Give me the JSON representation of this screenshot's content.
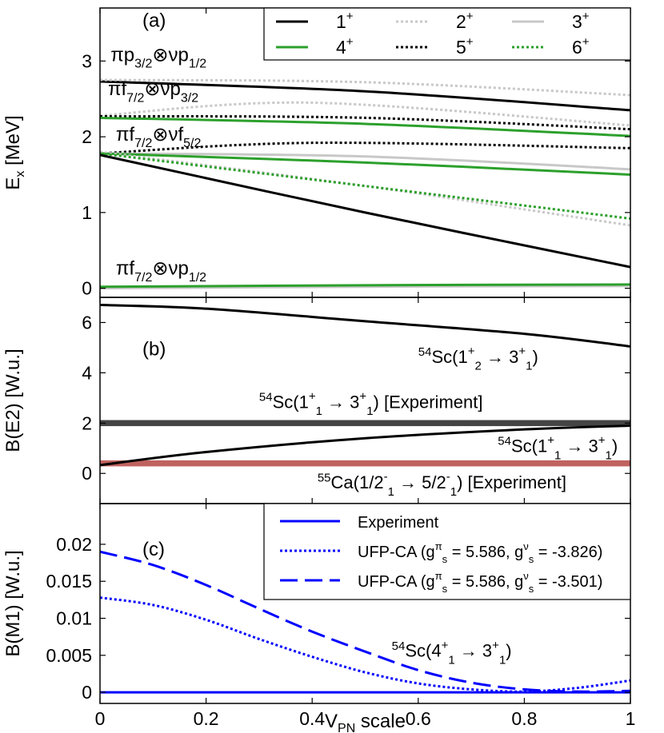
{
  "chart_data": [
    {
      "type": "line",
      "panel": "(a)",
      "ylabel": "E",
      "ylabel_sub": "x",
      "ylabel_unit": "[MeV]",
      "ylim": [
        -0.12,
        3.7
      ],
      "xlim": [
        0,
        1
      ],
      "yticks": [
        "0",
        "1",
        "2",
        "3"
      ],
      "ytick_values": [
        0,
        1,
        2,
        3
      ],
      "legend_position": "top-right",
      "legend": [
        {
          "label": "1",
          "sup": "+",
          "color": "#000000",
          "style": "solid"
        },
        {
          "label": "2",
          "sup": "+",
          "color": "#c8c8c8",
          "style": "dotted"
        },
        {
          "label": "3",
          "sup": "+",
          "color": "#c8c8c8",
          "style": "solid"
        },
        {
          "label": "4",
          "sup": "+",
          "color": "#2ca02c",
          "style": "solid"
        },
        {
          "label": "5",
          "sup": "+",
          "color": "#000000",
          "style": "dotted"
        },
        {
          "label": "6",
          "sup": "+",
          "color": "#2ca02c",
          "style": "dotted"
        }
      ],
      "annotations": [
        {
          "parts": [
            "πp",
            "3/2",
            "⊗νp",
            "1/2"
          ],
          "x": 0.02,
          "y": 3.0
        },
        {
          "parts": [
            "πf",
            "7/2",
            "⊗νp",
            "3/2"
          ],
          "x": 0.015,
          "y": 2.55
        },
        {
          "parts": [
            "πf",
            "7/2",
            "⊗νf",
            "5/2"
          ],
          "x": 0.03,
          "y": 1.95
        },
        {
          "parts": [
            "πf",
            "7/2",
            "⊗νp",
            "1/2"
          ],
          "x": 0.03,
          "y": 0.18
        }
      ],
      "series": [
        {
          "name": "1+ (p3/2 x p1/2)",
          "color": "#000000",
          "style": "solid",
          "x": [
            0,
            0.5,
            1
          ],
          "y": [
            2.73,
            2.6,
            2.35
          ]
        },
        {
          "name": "2+ (p3/2 x p1/2)",
          "color": "#c8c8c8",
          "style": "dotted",
          "x": [
            0,
            0.5,
            1
          ],
          "y": [
            2.75,
            2.72,
            2.55
          ]
        },
        {
          "name": "2+ (f7/2 x p3/2)",
          "color": "#c8c8c8",
          "style": "dotted",
          "x": [
            0,
            0.4,
            1
          ],
          "y": [
            2.28,
            2.45,
            2.15
          ]
        },
        {
          "name": "5+ (f7/2 x p3/2)",
          "color": "#000000",
          "style": "dotted",
          "x": [
            0,
            0.5,
            1
          ],
          "y": [
            2.27,
            2.25,
            2.1
          ]
        },
        {
          "name": "4+ (f7/2 x p3/2)",
          "color": "#2ca02c",
          "style": "solid",
          "x": [
            0,
            0.5,
            1
          ],
          "y": [
            2.25,
            2.17,
            2.01
          ]
        },
        {
          "name": "5+ (f7/2 x f5/2)",
          "color": "#000000",
          "style": "dotted",
          "x": [
            0,
            0.4,
            1
          ],
          "y": [
            1.78,
            1.92,
            1.85
          ]
        },
        {
          "name": "3+ (f7/2 x f5/2)",
          "color": "#c8c8c8",
          "style": "solid",
          "x": [
            0,
            0.5,
            1
          ],
          "y": [
            1.78,
            1.74,
            1.57
          ]
        },
        {
          "name": "4+ (f7/2 x f5/2)",
          "color": "#2ca02c",
          "style": "solid",
          "x": [
            0,
            0.5,
            1
          ],
          "y": [
            1.78,
            1.66,
            1.5
          ]
        },
        {
          "name": "2+ (f7/2 x f5/2)",
          "color": "#c8c8c8",
          "style": "dotted",
          "x": [
            0,
            0.5,
            1
          ],
          "y": [
            1.8,
            1.35,
            0.83
          ]
        },
        {
          "name": "6+ (f7/2 x f5/2)",
          "color": "#2ca02c",
          "style": "dotted",
          "x": [
            0,
            0.5,
            1
          ],
          "y": [
            1.78,
            1.35,
            0.92
          ]
        },
        {
          "name": "1+ (f7/2 x f5/2)",
          "color": "#000000",
          "style": "solid",
          "x": [
            0,
            0.5,
            1
          ],
          "y": [
            1.76,
            1.0,
            0.28
          ]
        },
        {
          "name": "3+ (f7/2 x p1/2)",
          "color": "#c8c8c8",
          "style": "solid",
          "x": [
            0,
            0.5,
            1
          ],
          "y": [
            0.0,
            0.02,
            0.03
          ]
        },
        {
          "name": "4+ (f7/2 x p1/2)",
          "color": "#2ca02c",
          "style": "solid",
          "x": [
            0,
            0.5,
            1
          ],
          "y": [
            0.02,
            0.04,
            0.05
          ]
        }
      ]
    },
    {
      "type": "line",
      "panel": "(b)",
      "ylabel": "B(E2) [W.u.]",
      "ylim": [
        -1.2,
        7.0
      ],
      "xlim": [
        0,
        1
      ],
      "yticks": [
        "0",
        "2",
        "4",
        "6"
      ],
      "ytick_values": [
        0,
        2,
        4,
        6
      ],
      "bands": [
        {
          "name": "54Sc(1+1 -> 3+1) [Experiment]",
          "y0": 1.88,
          "y1": 2.12,
          "color": "#444444"
        },
        {
          "name": "55Ca(1/2-1 -> 5/2-1) [Experiment]",
          "y0": 0.28,
          "y1": 0.52,
          "color": "#c0625f"
        }
      ],
      "series": [
        {
          "name": "54Sc(1+2 -> 3+1)",
          "color": "#000000",
          "style": "solid",
          "x": [
            0,
            0.2,
            0.5,
            0.8,
            1
          ],
          "y": [
            6.7,
            6.55,
            6.05,
            5.55,
            5.05
          ]
        },
        {
          "name": "54Sc(1+1 -> 3+1)",
          "color": "#000000",
          "style": "solid",
          "x": [
            0,
            0.2,
            0.5,
            0.8,
            1
          ],
          "y": [
            0.33,
            0.85,
            1.4,
            1.75,
            1.9
          ]
        }
      ],
      "labels": [
        {
          "text": "(b)",
          "x": 0.08,
          "y": 4.7
        },
        {
          "parts": [
            "54",
            "Sc(1",
            "+",
            "2",
            "→",
            "3",
            "+",
            "1",
            ")"
          ],
          "x": 0.6,
          "y": 4.4,
          "color": "#000000"
        },
        {
          "parts": [
            "54",
            "Sc(1",
            "+",
            "1",
            "→",
            "3",
            "+",
            "1",
            ") [Experiment]"
          ],
          "x": 0.3,
          "y": 2.6,
          "color": "#000000"
        },
        {
          "parts": [
            "54",
            "Sc(1",
            "+",
            "1",
            "→",
            "3",
            "+",
            "1",
            ")"
          ],
          "x": 0.75,
          "y": 0.85,
          "color": "#000000"
        },
        {
          "parts": [
            "55",
            "Ca(1/2",
            "-",
            "1",
            "→",
            "5/2",
            "-",
            "1",
            ") [Experiment]"
          ],
          "x": 0.41,
          "y": -0.6,
          "color": "#8b0000"
        }
      ]
    },
    {
      "type": "line",
      "panel": "(c)",
      "ylabel": "B(M1) [W.u.]",
      "xlabel": "V",
      "xlabel_sub": "PN",
      "xlabel_rest": " scale",
      "ylim": [
        -0.0015,
        0.0255
      ],
      "xlim": [
        0,
        1
      ],
      "xticks": [
        "0",
        "0.2",
        "0.4",
        "0.6",
        "0.8",
        "1"
      ],
      "xtick_values": [
        0,
        0.2,
        0.4,
        0.6,
        0.8,
        1
      ],
      "yticks": [
        "0",
        "0.005",
        "0.01",
        "0.015",
        "0.02"
      ],
      "ytick_values": [
        0,
        0.005,
        0.01,
        0.015,
        0.02
      ],
      "legend_position": "top-right",
      "legend": [
        {
          "parts": [
            "Experiment"
          ],
          "color": "#0000ff",
          "style": "solid"
        },
        {
          "parts": [
            "UFP-CA (g",
            "π",
            "s",
            " = 5.586, g",
            "ν",
            "s",
            " = -3.826)"
          ],
          "color": "#0000ff",
          "style": "dotted"
        },
        {
          "parts": [
            "UFP-CA (g",
            "π",
            "s",
            " = 5.586, g",
            "ν",
            "s",
            " = -3.501)"
          ],
          "color": "#0000ff",
          "style": "dashed"
        }
      ],
      "series": [
        {
          "name": "Experiment",
          "color": "#0000ff",
          "style": "solid",
          "x": [
            0,
            1
          ],
          "y": [
            0.0,
            0.0
          ]
        },
        {
          "name": "UFP-CA (-3.826)",
          "color": "#0000ff",
          "style": "dotted",
          "x": [
            0,
            0.1,
            0.2,
            0.3,
            0.4,
            0.5,
            0.6,
            0.7,
            0.8,
            0.9,
            1.0
          ],
          "y": [
            0.0128,
            0.0118,
            0.0098,
            0.0072,
            0.0048,
            0.0027,
            0.0012,
            0.0004,
            0.0001,
            0.0006,
            0.0016
          ]
        },
        {
          "name": "UFP-CA (-3.501)",
          "color": "#0000ff",
          "style": "dashed",
          "x": [
            0,
            0.1,
            0.2,
            0.3,
            0.4,
            0.5,
            0.6,
            0.7,
            0.8,
            0.9,
            1.0
          ],
          "y": [
            0.019,
            0.0172,
            0.0145,
            0.0113,
            0.0082,
            0.0055,
            0.003,
            0.0013,
            0.0004,
            0.0001,
            0.0002
          ]
        }
      ],
      "labels": [
        {
          "text": "(c)",
          "x": 0.08,
          "y": 0.0185
        },
        {
          "parts": [
            "54",
            "Sc(4",
            "+",
            "1",
            "→",
            "3",
            "+",
            "1",
            ")"
          ],
          "x": 0.55,
          "y": 0.0048,
          "color": "#000000"
        }
      ]
    }
  ]
}
